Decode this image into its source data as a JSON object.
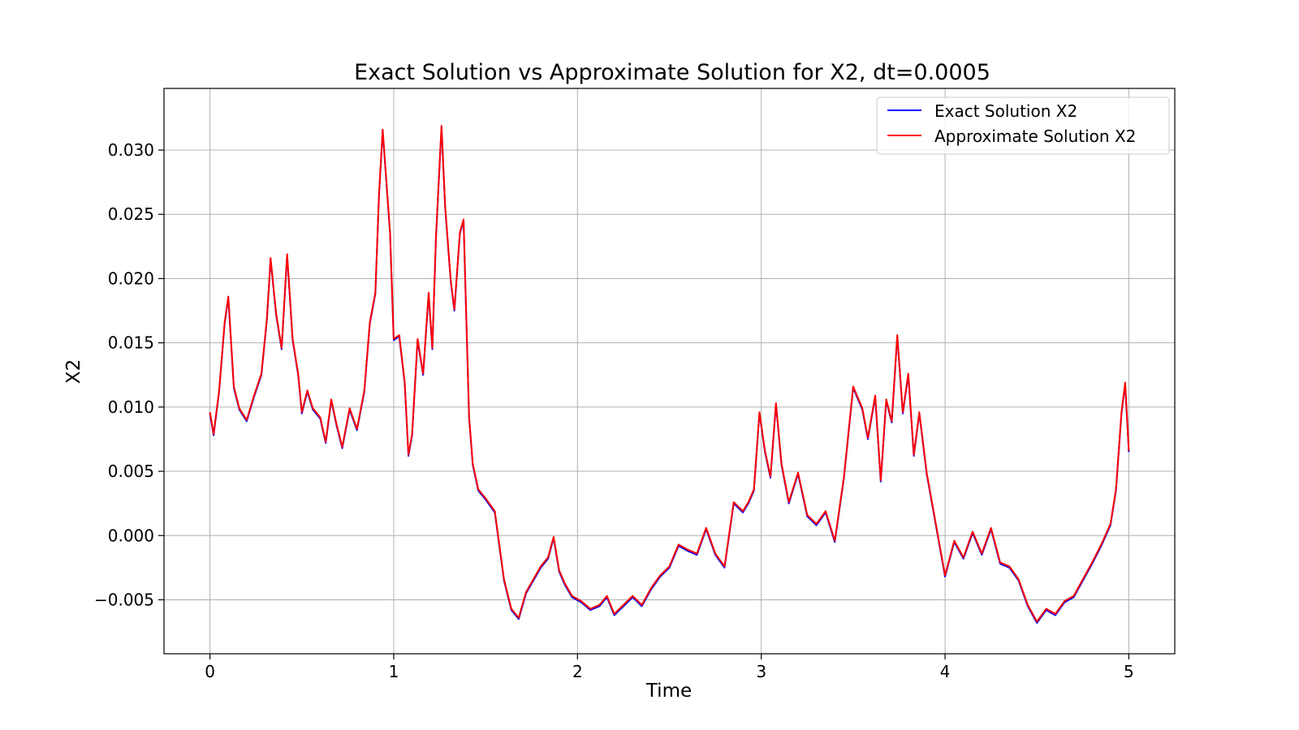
{
  "chart_data": {
    "type": "line",
    "title": "Exact Solution vs Approximate Solution for X2, dt=0.0005",
    "xlabel": "Time",
    "ylabel": "X2",
    "xlim": [
      -0.25,
      5.25
    ],
    "ylim": [
      -0.0092,
      0.0348
    ],
    "xticks": [
      0,
      1,
      2,
      3,
      4,
      5
    ],
    "xtick_labels": [
      "0",
      "1",
      "2",
      "3",
      "4",
      "5"
    ],
    "yticks": [
      -0.005,
      0.0,
      0.005,
      0.01,
      0.015,
      0.02,
      0.025,
      0.03
    ],
    "ytick_labels": [
      "−0.005",
      "0.000",
      "0.005",
      "0.010",
      "0.015",
      "0.020",
      "0.025",
      "0.030"
    ],
    "grid": true,
    "legend": "top-right",
    "series": [
      {
        "name": "Exact Solution X2",
        "color": "#0000ff",
        "x": [
          0.0,
          0.02,
          0.05,
          0.08,
          0.1,
          0.13,
          0.16,
          0.2,
          0.24,
          0.28,
          0.31,
          0.33,
          0.36,
          0.39,
          0.42,
          0.45,
          0.48,
          0.5,
          0.53,
          0.56,
          0.6,
          0.63,
          0.66,
          0.69,
          0.72,
          0.76,
          0.8,
          0.84,
          0.87,
          0.9,
          0.92,
          0.94,
          0.96,
          0.98,
          1.0,
          1.03,
          1.06,
          1.08,
          1.1,
          1.13,
          1.16,
          1.19,
          1.21,
          1.23,
          1.26,
          1.28,
          1.31,
          1.33,
          1.36,
          1.38,
          1.41,
          1.43,
          1.46,
          1.5,
          1.55,
          1.6,
          1.64,
          1.68,
          1.72,
          1.76,
          1.8,
          1.84,
          1.87,
          1.9,
          1.93,
          1.97,
          2.02,
          2.07,
          2.12,
          2.16,
          2.2,
          2.25,
          2.3,
          2.35,
          2.4,
          2.45,
          2.5,
          2.55,
          2.6,
          2.65,
          2.7,
          2.75,
          2.8,
          2.85,
          2.9,
          2.93,
          2.96,
          2.99,
          3.02,
          3.05,
          3.08,
          3.11,
          3.15,
          3.2,
          3.25,
          3.3,
          3.35,
          3.4,
          3.45,
          3.5,
          3.55,
          3.58,
          3.62,
          3.65,
          3.68,
          3.71,
          3.74,
          3.77,
          3.8,
          3.83,
          3.86,
          3.9,
          3.95,
          4.0,
          4.05,
          4.1,
          4.15,
          4.2,
          4.25,
          4.3,
          4.35,
          4.4,
          4.45,
          4.5,
          4.55,
          4.6,
          4.65,
          4.7,
          4.75,
          4.8,
          4.85,
          4.9,
          4.93,
          4.96,
          4.98,
          5.0
        ],
        "y": [
          0.0095,
          0.0078,
          0.0112,
          0.0165,
          0.0185,
          0.0115,
          0.0098,
          0.0089,
          0.0108,
          0.0125,
          0.0168,
          0.0215,
          0.0172,
          0.0145,
          0.0218,
          0.0152,
          0.0125,
          0.0095,
          0.0112,
          0.0098,
          0.0091,
          0.0072,
          0.0105,
          0.0085,
          0.0068,
          0.0098,
          0.0082,
          0.0112,
          0.0165,
          0.0188,
          0.0265,
          0.0315,
          0.0275,
          0.0235,
          0.0152,
          0.0155,
          0.0118,
          0.0062,
          0.0078,
          0.0152,
          0.0125,
          0.0188,
          0.0145,
          0.0232,
          0.0318,
          0.0255,
          0.0198,
          0.0175,
          0.0235,
          0.0245,
          0.0092,
          0.0055,
          0.0035,
          0.0028,
          0.0018,
          -0.0035,
          -0.0058,
          -0.0065,
          -0.0045,
          -0.0035,
          -0.0025,
          -0.0018,
          -0.0002,
          -0.0028,
          -0.0038,
          -0.0048,
          -0.0052,
          -0.0058,
          -0.0055,
          -0.0048,
          -0.0062,
          -0.0055,
          -0.0048,
          -0.0055,
          -0.0042,
          -0.0032,
          -0.0025,
          -0.0008,
          -0.0012,
          -0.0015,
          0.0005,
          -0.0015,
          -0.0025,
          0.0025,
          0.0018,
          0.0025,
          0.0035,
          0.0095,
          0.0065,
          0.0045,
          0.0102,
          0.0055,
          0.0025,
          0.0048,
          0.0015,
          0.0008,
          0.0018,
          -0.0005,
          0.0045,
          0.0115,
          0.0098,
          0.0075,
          0.0108,
          0.0042,
          0.0105,
          0.0088,
          0.0155,
          0.0095,
          0.0125,
          0.0062,
          0.0095,
          0.0048,
          0.0008,
          -0.0032,
          -0.0005,
          -0.0018,
          0.0002,
          -0.0015,
          0.0005,
          -0.0022,
          -0.0025,
          -0.0035,
          -0.0055,
          -0.0068,
          -0.0058,
          -0.0062,
          -0.0052,
          -0.0048,
          -0.0035,
          -0.0022,
          -0.0008,
          0.0008,
          0.0035,
          0.0095,
          0.0118,
          0.0065
        ]
      },
      {
        "name": "Approximate Solution X2",
        "color": "#ff0000",
        "x": [
          0.0,
          0.02,
          0.05,
          0.08,
          0.1,
          0.13,
          0.16,
          0.2,
          0.24,
          0.28,
          0.31,
          0.33,
          0.36,
          0.39,
          0.42,
          0.45,
          0.48,
          0.5,
          0.53,
          0.56,
          0.6,
          0.63,
          0.66,
          0.69,
          0.72,
          0.76,
          0.8,
          0.84,
          0.87,
          0.9,
          0.92,
          0.94,
          0.96,
          0.98,
          1.0,
          1.03,
          1.06,
          1.08,
          1.1,
          1.13,
          1.16,
          1.19,
          1.21,
          1.23,
          1.26,
          1.28,
          1.31,
          1.33,
          1.36,
          1.38,
          1.41,
          1.43,
          1.46,
          1.5,
          1.55,
          1.6,
          1.64,
          1.68,
          1.72,
          1.76,
          1.8,
          1.84,
          1.87,
          1.9,
          1.93,
          1.97,
          2.02,
          2.07,
          2.12,
          2.16,
          2.2,
          2.25,
          2.3,
          2.35,
          2.4,
          2.45,
          2.5,
          2.55,
          2.6,
          2.65,
          2.7,
          2.75,
          2.8,
          2.85,
          2.9,
          2.93,
          2.96,
          2.99,
          3.02,
          3.05,
          3.08,
          3.11,
          3.15,
          3.2,
          3.25,
          3.3,
          3.35,
          3.4,
          3.45,
          3.5,
          3.55,
          3.58,
          3.62,
          3.65,
          3.68,
          3.71,
          3.74,
          3.77,
          3.8,
          3.83,
          3.86,
          3.9,
          3.95,
          4.0,
          4.05,
          4.1,
          4.15,
          4.2,
          4.25,
          4.3,
          4.35,
          4.4,
          4.45,
          4.5,
          4.55,
          4.6,
          4.65,
          4.7,
          4.75,
          4.8,
          4.85,
          4.9,
          4.93,
          4.96,
          4.98,
          5.0
        ],
        "y": [
          0.0096,
          0.0079,
          0.0113,
          0.0166,
          0.0186,
          0.0116,
          0.0099,
          0.009,
          0.0109,
          0.0126,
          0.0169,
          0.0216,
          0.0173,
          0.0146,
          0.0219,
          0.0153,
          0.0126,
          0.0096,
          0.0113,
          0.0099,
          0.0092,
          0.0073,
          0.0106,
          0.0086,
          0.0069,
          0.0099,
          0.0083,
          0.0113,
          0.0166,
          0.0189,
          0.0266,
          0.0316,
          0.0276,
          0.0236,
          0.0153,
          0.0156,
          0.0119,
          0.0063,
          0.0079,
          0.0153,
          0.0126,
          0.0189,
          0.0146,
          0.0233,
          0.0319,
          0.0256,
          0.0199,
          0.0176,
          0.0236,
          0.0246,
          0.0093,
          0.0056,
          0.0036,
          0.0029,
          0.0019,
          -0.0034,
          -0.0057,
          -0.0064,
          -0.0044,
          -0.0034,
          -0.0024,
          -0.0017,
          -0.0001,
          -0.0027,
          -0.0037,
          -0.0047,
          -0.0051,
          -0.0057,
          -0.0054,
          -0.0047,
          -0.0061,
          -0.0054,
          -0.0047,
          -0.0054,
          -0.0041,
          -0.0031,
          -0.0024,
          -0.0007,
          -0.0011,
          -0.0014,
          0.0006,
          -0.0014,
          -0.0024,
          0.0026,
          0.0019,
          0.0026,
          0.0036,
          0.0096,
          0.0066,
          0.0046,
          0.0103,
          0.0056,
          0.0026,
          0.0049,
          0.0016,
          0.0009,
          0.0019,
          -0.0004,
          0.0046,
          0.0116,
          0.0099,
          0.0076,
          0.0109,
          0.0043,
          0.0106,
          0.0089,
          0.0156,
          0.0096,
          0.0126,
          0.0063,
          0.0096,
          0.0049,
          0.0009,
          -0.0031,
          -0.0004,
          -0.0017,
          0.0003,
          -0.0014,
          0.0006,
          -0.0021,
          -0.0024,
          -0.0034,
          -0.0054,
          -0.0067,
          -0.0057,
          -0.0061,
          -0.0051,
          -0.0047,
          -0.0034,
          -0.0021,
          -0.0007,
          0.0009,
          0.0036,
          0.0096,
          0.0119,
          0.0066
        ]
      }
    ]
  }
}
